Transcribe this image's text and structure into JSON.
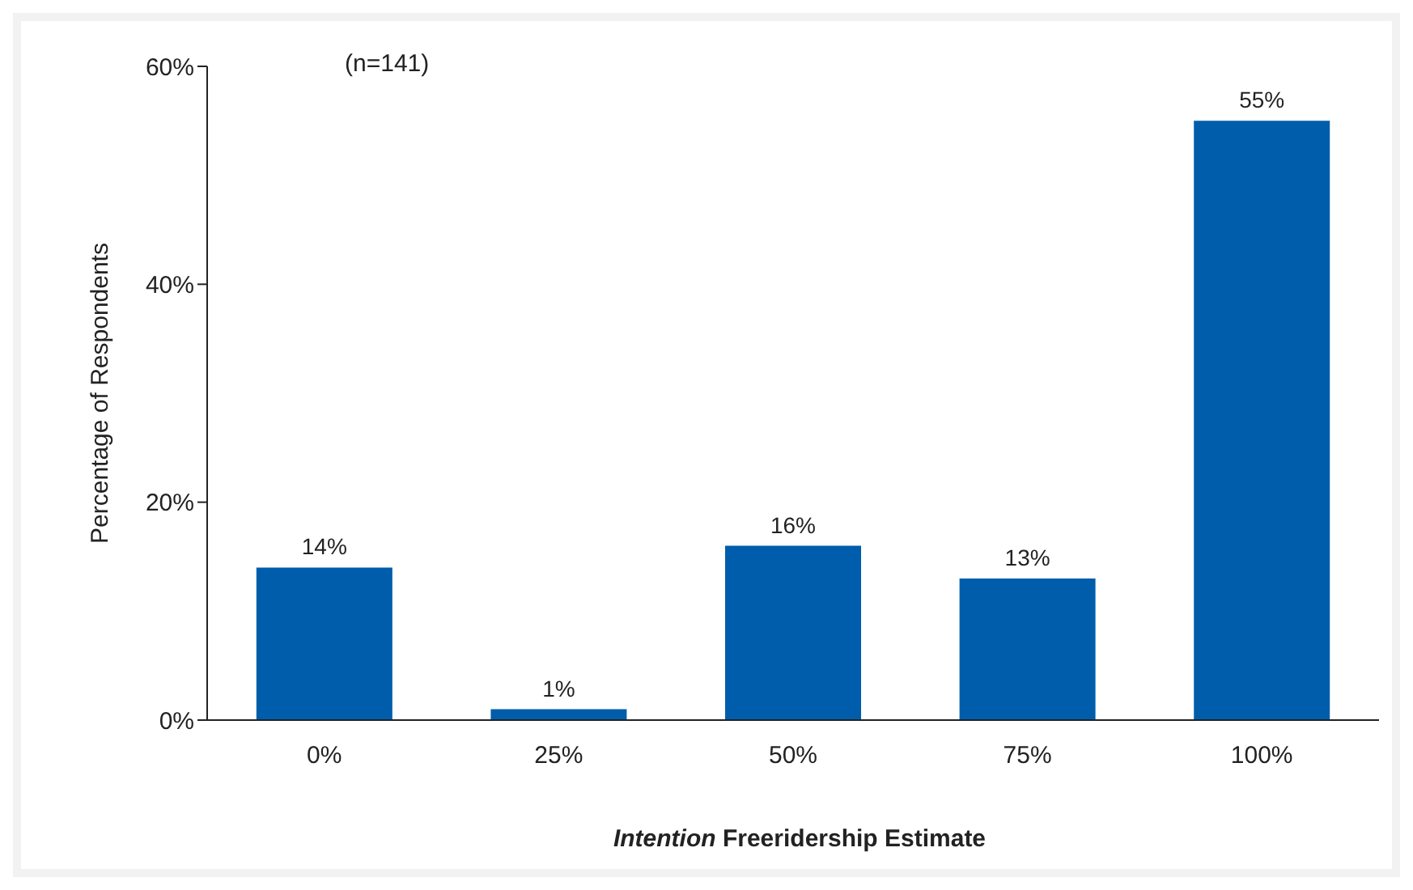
{
  "chart_data": {
    "type": "bar",
    "xlabel": "Intention Freeridership Estimate",
    "ylabel": "Percentage of Respondents",
    "categories": [
      "0%",
      "25%",
      "50%",
      "75%",
      "100%"
    ],
    "values": [
      14,
      1,
      16,
      13,
      55
    ],
    "value_labels": [
      "14%",
      "1%",
      "16%",
      "13%",
      "55%"
    ],
    "color": "#005dab",
    "ylim": [
      0,
      60
    ],
    "yticks": [
      {
        "value": 0,
        "label": "0%"
      },
      {
        "value": 20,
        "label": "20%"
      },
      {
        "value": 40,
        "label": "40%"
      },
      {
        "value": 60,
        "label": "60%"
      }
    ],
    "annotations": [
      "(n=141)"
    ],
    "grid": false,
    "legend": false
  }
}
